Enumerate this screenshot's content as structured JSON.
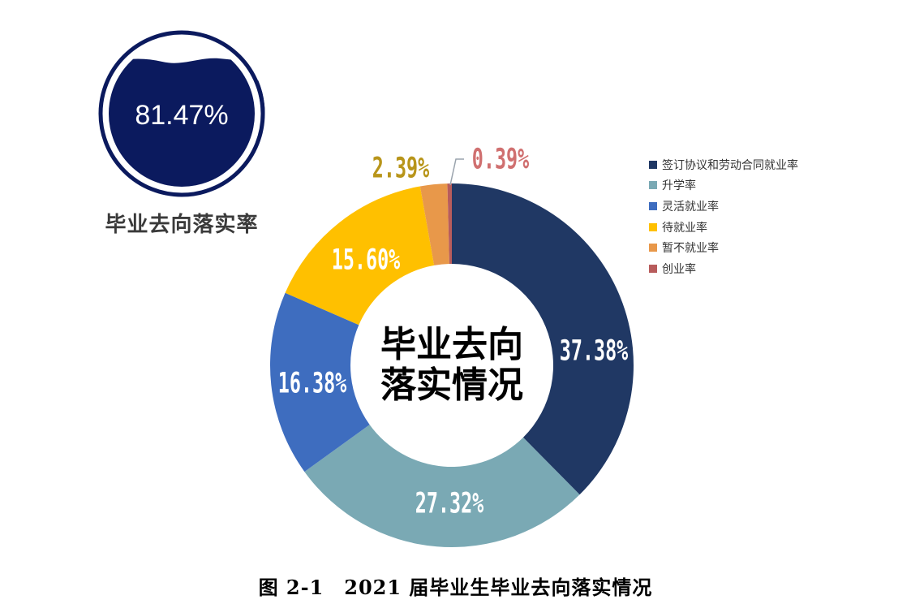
{
  "badge": {
    "value": "81.47%",
    "label": "毕业去向落实率",
    "color": "#0b1a5e"
  },
  "center_title": {
    "line1": "毕业去向",
    "line2": "落实情况"
  },
  "caption": "图 2-1　2021 届毕业生毕业去向落实情况",
  "legend": [
    {
      "label": "签订协议和劳动合同就业率",
      "color": "#203864"
    },
    {
      "label": "升学率",
      "color": "#7aa9b4"
    },
    {
      "label": "灵活就业率",
      "color": "#3e6dbf"
    },
    {
      "label": "待就业率",
      "color": "#ffc000"
    },
    {
      "label": "暂不就业率",
      "color": "#e8984a"
    },
    {
      "label": "创业率",
      "color": "#b85c5c"
    }
  ],
  "chart_data": {
    "type": "pie",
    "donut": true,
    "title": "2021 届毕业生毕业去向落实情况",
    "center_text": "毕业去向落实情况",
    "categories": [
      "签订协议和劳动合同就业率",
      "升学率",
      "灵活就业率",
      "待就业率",
      "暂不就业率",
      "创业率"
    ],
    "values": [
      37.38,
      27.32,
      16.38,
      15.6,
      2.39,
      0.39
    ],
    "labels": [
      "37.38%",
      "27.32%",
      "16.38%",
      "15.60%",
      "2.39%",
      "0.39%"
    ],
    "colors": [
      "#203864",
      "#7aa9b4",
      "#3e6dbf",
      "#ffc000",
      "#e8984a",
      "#b85c5c"
    ],
    "label_colors": [
      "#ffffff",
      "#ffffff",
      "#ffffff",
      "#ffffff",
      "#b8951a",
      "#d07070"
    ],
    "legend_position": "right",
    "summary_indicator": {
      "label": "毕业去向落实率",
      "value": 81.47
    }
  }
}
